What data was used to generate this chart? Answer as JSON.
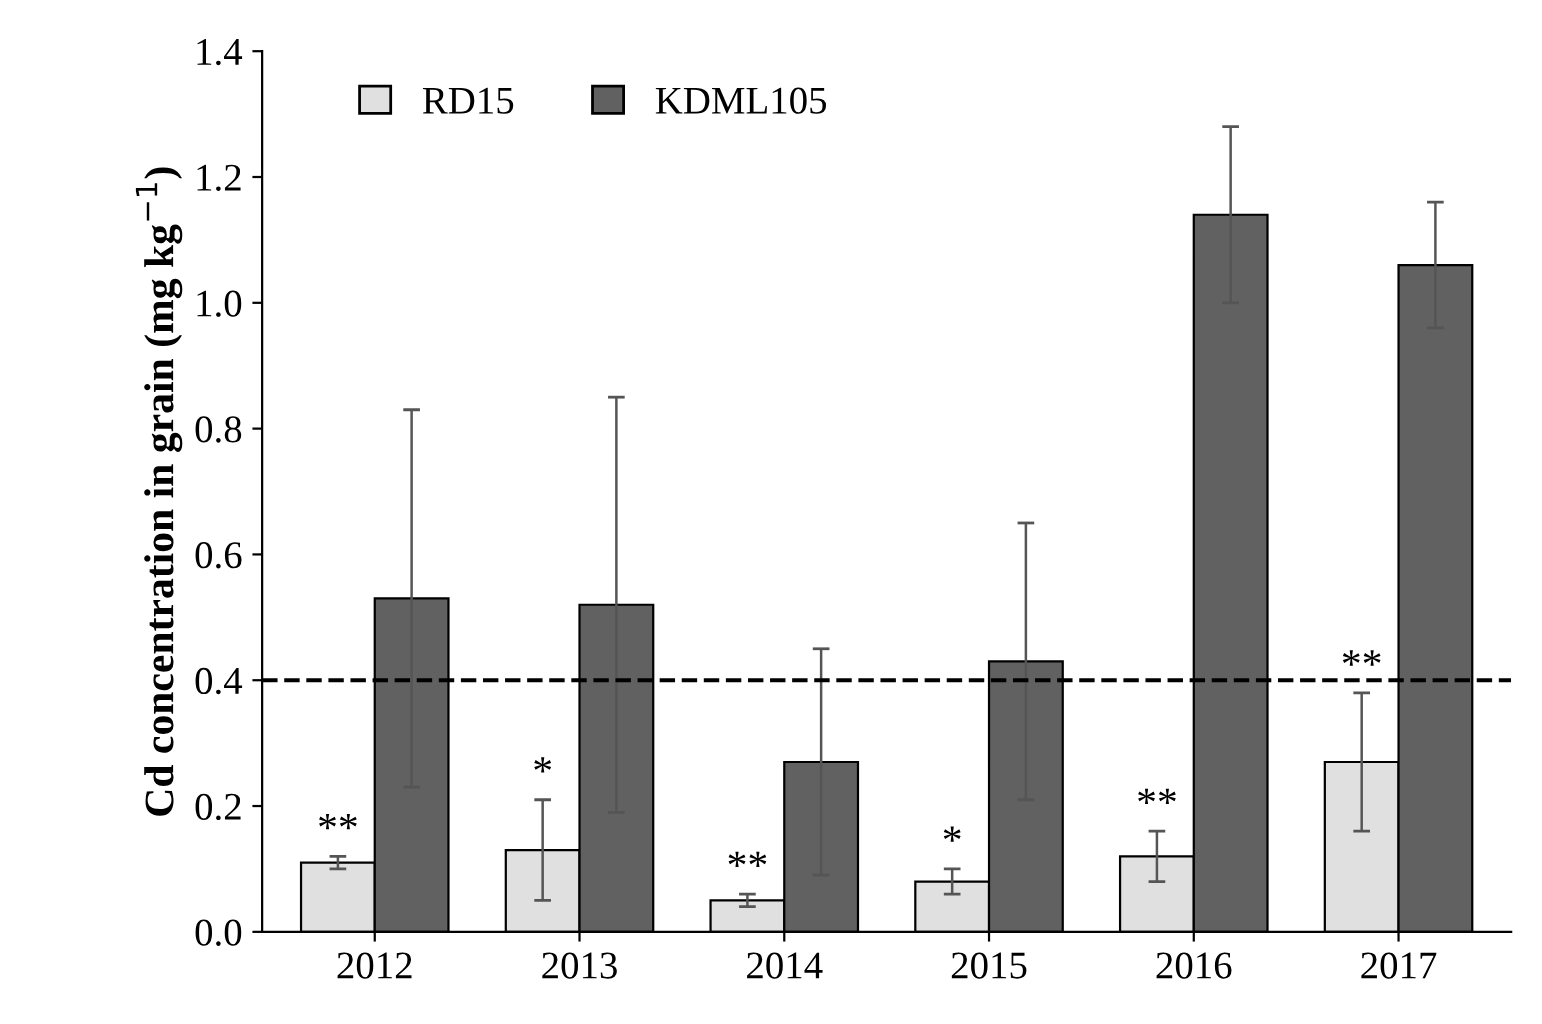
{
  "chart_data": {
    "type": "bar",
    "ylabel": "Cd concentration in grain (mg kg$^{−1}$)",
    "categories": [
      "2012",
      "2013",
      "2014",
      "2015",
      "2016",
      "2017"
    ],
    "series": [
      {
        "name": "RD15",
        "color": "#e0e0e0",
        "values": [
          0.11,
          0.13,
          0.05,
          0.08,
          0.12,
          0.27
        ],
        "errors": [
          0.01,
          0.08,
          0.01,
          0.02,
          0.04,
          0.11
        ]
      },
      {
        "name": "KDML105",
        "color": "#616161",
        "values": [
          0.53,
          0.52,
          0.27,
          0.43,
          1.14,
          1.06
        ],
        "errors": [
          0.3,
          0.33,
          0.18,
          0.22,
          0.14,
          0.1
        ]
      }
    ],
    "ylim": [
      0,
      1.4
    ],
    "yticks": [
      {
        "value": 0,
        "label": "0.0"
      },
      0.2,
      0.4,
      0.6,
      0.8,
      {
        "value": 1,
        "label": "1.0"
      },
      1.2,
      1.4
    ],
    "ref_lines": [
      {
        "axis": "y",
        "value": 0.4,
        "line_style": "dashed",
        "color": "#000000"
      }
    ],
    "annotations": [
      {
        "text": "**",
        "x": "2012",
        "y": 0.13
      },
      {
        "text": "*",
        "x": "2013",
        "y": 0.22
      },
      {
        "text": "**",
        "x": "2014",
        "y": 0.07
      },
      {
        "text": "*",
        "x": "2015",
        "y": 0.11
      },
      {
        "text": "**",
        "x": "2016",
        "y": 0.17
      },
      {
        "text": "**",
        "x": "2017",
        "y": 0.39
      }
    ],
    "legend": "top left",
    "grid": false
  }
}
